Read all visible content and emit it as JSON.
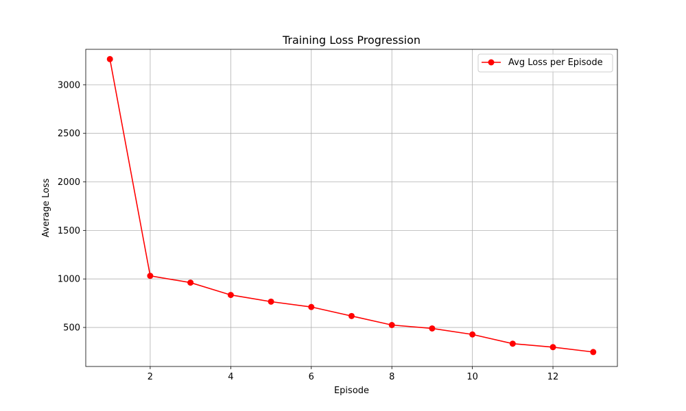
{
  "chart_data": {
    "type": "line",
    "title": "Training Loss Progression",
    "xlabel": "Episode",
    "ylabel": "Average Loss",
    "xlim": [
      0.4,
      13.6
    ],
    "ylim": [
      98,
      3366
    ],
    "x_ticks": [
      2,
      4,
      6,
      8,
      10,
      12
    ],
    "y_ticks": [
      500,
      1000,
      1500,
      2000,
      2500,
      3000
    ],
    "grid": true,
    "legend_position": "top-right",
    "series": [
      {
        "name": "Avg Loss per Episode",
        "color": "#ff0000",
        "marker": "circle",
        "x": [
          1,
          2,
          3,
          4,
          5,
          6,
          7,
          8,
          9,
          10,
          11,
          12,
          13
        ],
        "y": [
          3265,
          1032,
          962,
          835,
          766,
          711,
          618,
          525,
          490,
          428,
          333,
          297,
          247
        ]
      }
    ]
  }
}
